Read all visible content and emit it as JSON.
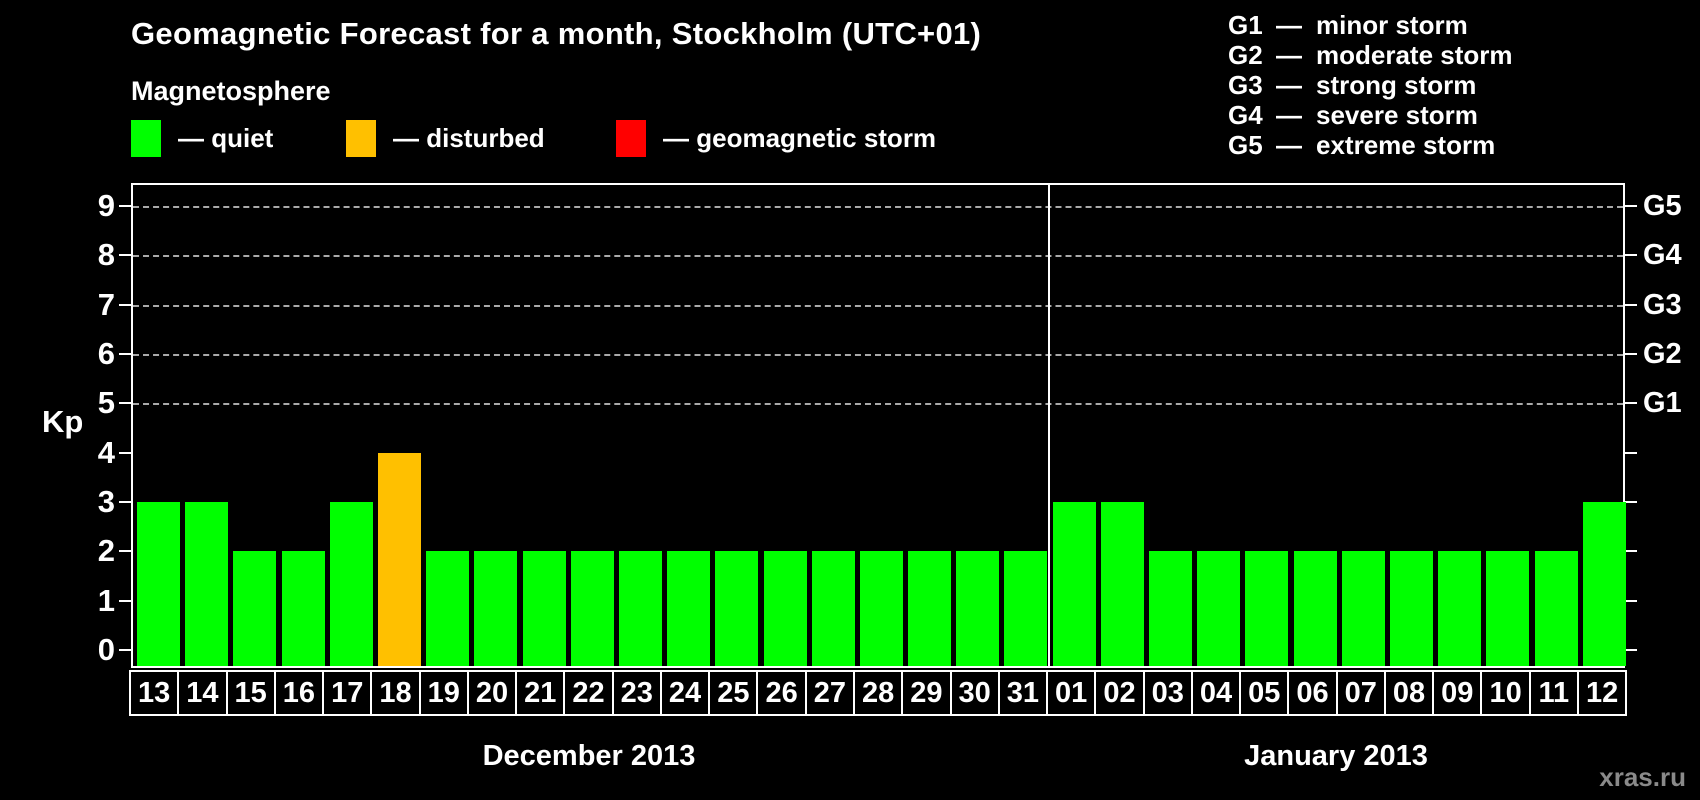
{
  "title": "Geomagnetic Forecast for a month, Stockholm (UTC+01)",
  "magnetosphere_legend": {
    "heading": "Magnetosphere",
    "items": [
      {
        "key": "quiet",
        "label": "— quiet",
        "color": "#00ff00"
      },
      {
        "key": "disturbed",
        "label": "— disturbed",
        "color": "#ffc000"
      },
      {
        "key": "storm",
        "label": "— geomagnetic storm",
        "color": "#ff0000"
      }
    ]
  },
  "g_legend": {
    "items": [
      {
        "code": "G1",
        "dash": "—",
        "label": "minor storm"
      },
      {
        "code": "G2",
        "dash": "—",
        "label": "moderate storm"
      },
      {
        "code": "G3",
        "dash": "—",
        "label": "strong storm"
      },
      {
        "code": "G4",
        "dash": "—",
        "label": "severe storm"
      },
      {
        "code": "G5",
        "dash": "—",
        "label": "extreme storm"
      }
    ]
  },
  "axes": {
    "y_label": "Kp",
    "y_ticks": [
      "0",
      "1",
      "2",
      "3",
      "4",
      "5",
      "6",
      "7",
      "8",
      "9"
    ],
    "right_scale": [
      {
        "code": "G1",
        "kp": 5
      },
      {
        "code": "G2",
        "kp": 6
      },
      {
        "code": "G3",
        "kp": 7
      },
      {
        "code": "G4",
        "kp": 8
      },
      {
        "code": "G5",
        "kp": 9
      }
    ],
    "grid_kp_levels": [
      5,
      6,
      7,
      8,
      9
    ]
  },
  "watermark": "xras.ru",
  "colors": {
    "background": "#000000",
    "text": "#ffffff",
    "grid": "#a9a9a9",
    "watermark": "#8a8a8a"
  },
  "chart_data": {
    "type": "bar",
    "title": "Geomagnetic Forecast for a month, Stockholm (UTC+01)",
    "ylabel": "Kp",
    "ylim": [
      0,
      9
    ],
    "grid": "horizontal dashed lines at Kp 5,6,7,8,9 (G1–G5)",
    "legend_position": "top-left",
    "groups": [
      {
        "key": "dec",
        "label": "December 2013",
        "days": [
          "13",
          "14",
          "15",
          "16",
          "17",
          "18",
          "19",
          "20",
          "21",
          "22",
          "23",
          "24",
          "25",
          "26",
          "27",
          "28",
          "29",
          "30",
          "31"
        ],
        "values": [
          3,
          3,
          2,
          2,
          3,
          4,
          2,
          2,
          2,
          2,
          2,
          2,
          2,
          2,
          2,
          2,
          2,
          2,
          2
        ],
        "statuses": [
          "quiet",
          "quiet",
          "quiet",
          "quiet",
          "quiet",
          "disturbed",
          "quiet",
          "quiet",
          "quiet",
          "quiet",
          "quiet",
          "quiet",
          "quiet",
          "quiet",
          "quiet",
          "quiet",
          "quiet",
          "quiet",
          "quiet"
        ]
      },
      {
        "key": "jan",
        "label": "January 2013",
        "days": [
          "01",
          "02",
          "03",
          "04",
          "05",
          "06",
          "07",
          "08",
          "09",
          "10",
          "11",
          "12"
        ],
        "values": [
          3,
          3,
          2,
          2,
          2,
          2,
          2,
          2,
          2,
          2,
          2,
          3
        ],
        "statuses": [
          "quiet",
          "quiet",
          "quiet",
          "quiet",
          "quiet",
          "quiet",
          "quiet",
          "quiet",
          "quiet",
          "quiet",
          "quiet",
          "quiet"
        ]
      }
    ]
  }
}
